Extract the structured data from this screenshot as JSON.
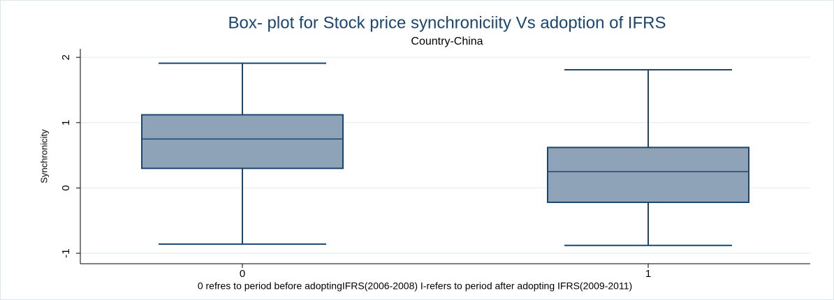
{
  "chart_data": {
    "type": "box",
    "title": "Box- plot for Stock price synchroniciity Vs adoption of IFRS",
    "subtitle": "Country-China",
    "y_label": "Synchronicity",
    "x_label": "0 refres to  period before adoptingIFRS(2006-2008) I-refers to period after adopting IFRS(2009-2011)",
    "categories": [
      "0",
      "1"
    ],
    "whisker_low": [
      -0.86,
      -0.88
    ],
    "q1": [
      0.3,
      -0.22
    ],
    "median": [
      0.75,
      0.25
    ],
    "q3": [
      1.12,
      0.62
    ],
    "whisker_high": [
      1.91,
      1.81
    ],
    "color": "#8ea3b8",
    "line_color": "#1a476f",
    "ylim": [
      -1.16,
      2.13
    ],
    "yticks": [
      -1,
      0,
      1,
      2
    ],
    "grid": true
  }
}
